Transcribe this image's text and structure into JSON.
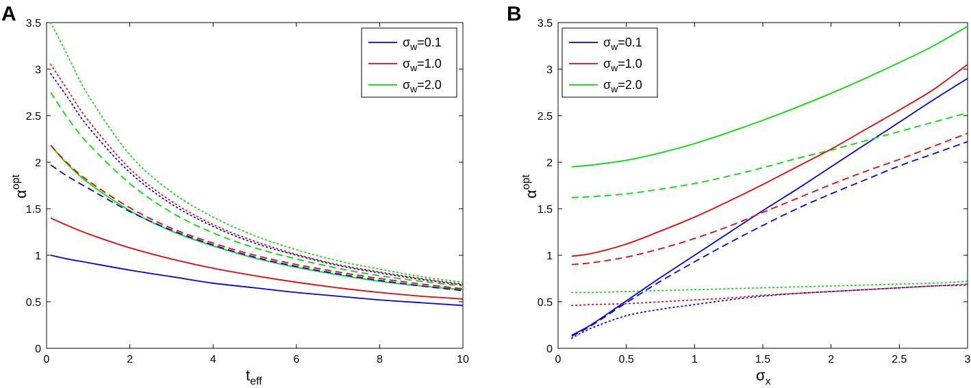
{
  "chart_data": [
    {
      "type": "line",
      "panel": "A",
      "xlabel": {
        "main": "t",
        "sub": "eff"
      },
      "ylabel": {
        "main": "α",
        "sup": "opt"
      },
      "xlim": [
        0,
        10
      ],
      "ylim": [
        0,
        3.5
      ],
      "xticks": [
        "0",
        "2",
        "4",
        "6",
        "8",
        "10"
      ],
      "yticks": [
        "0",
        "0.5",
        "1",
        "1.5",
        "2",
        "2.5",
        "3",
        "3.5"
      ],
      "legend": [
        {
          "main": "σ",
          "sub": "w",
          "rest": "=0.1",
          "color": "#0000ee"
        },
        {
          "main": "σ",
          "sub": "w",
          "rest": "=1.0",
          "color": "#ee0000"
        },
        {
          "main": "σ",
          "sub": "w",
          "rest": "=2.0",
          "color": "#00dd00"
        }
      ],
      "x": [
        0.1,
        0.5,
        1,
        2,
        3,
        4,
        5,
        6,
        7,
        8,
        9,
        10
      ],
      "series": [
        {
          "name": "σw=0.1 solid",
          "color": "#0000ee",
          "style": "solid",
          "values": [
            1.0,
            0.96,
            0.92,
            0.84,
            0.77,
            0.7,
            0.65,
            0.6,
            0.56,
            0.52,
            0.49,
            0.46
          ]
        },
        {
          "name": "σw=1.0 solid",
          "color": "#ee0000",
          "style": "solid",
          "values": [
            1.4,
            1.32,
            1.23,
            1.08,
            0.96,
            0.86,
            0.78,
            0.71,
            0.65,
            0.6,
            0.56,
            0.53
          ]
        },
        {
          "name": "σw=2.0 solid",
          "color": "#00dd00",
          "style": "solid",
          "values": [
            2.18,
            1.98,
            1.78,
            1.48,
            1.26,
            1.1,
            0.97,
            0.87,
            0.79,
            0.72,
            0.67,
            0.63
          ]
        },
        {
          "name": "σw=0.1 dashed",
          "color": "#0000ee",
          "style": "dashed",
          "values": [
            1.97,
            1.85,
            1.72,
            1.47,
            1.27,
            1.11,
            0.98,
            0.88,
            0.8,
            0.73,
            0.67,
            0.62
          ]
        },
        {
          "name": "σw=1.0 dashed",
          "color": "#ee0000",
          "style": "dashed",
          "values": [
            2.18,
            1.99,
            1.8,
            1.51,
            1.29,
            1.13,
            1.0,
            0.9,
            0.82,
            0.75,
            0.69,
            0.64
          ]
        },
        {
          "name": "σw=2.0 dashed",
          "color": "#00dd00",
          "style": "dashed",
          "values": [
            2.75,
            2.48,
            2.2,
            1.77,
            1.46,
            1.24,
            1.08,
            0.96,
            0.86,
            0.78,
            0.72,
            0.67
          ]
        },
        {
          "name": "σw=0.1 dotted",
          "color": "#0000ee",
          "style": "dotted",
          "values": [
            2.95,
            2.7,
            2.38,
            1.89,
            1.55,
            1.31,
            1.13,
            1.0,
            0.89,
            0.81,
            0.74,
            0.68
          ]
        },
        {
          "name": "σw=1.0 dotted",
          "color": "#ee0000",
          "style": "dotted",
          "values": [
            3.05,
            2.78,
            2.45,
            1.93,
            1.58,
            1.33,
            1.15,
            1.01,
            0.9,
            0.82,
            0.75,
            0.69
          ]
        },
        {
          "name": "σw=2.0 dotted",
          "color": "#00dd00",
          "style": "dotted",
          "values": [
            3.5,
            3.15,
            2.72,
            2.08,
            1.68,
            1.41,
            1.21,
            1.06,
            0.94,
            0.85,
            0.77,
            0.71
          ]
        }
      ]
    },
    {
      "type": "line",
      "panel": "B",
      "xlabel": {
        "main": "σ",
        "sub": "x"
      },
      "ylabel": {
        "main": "α",
        "sup": "opt"
      },
      "xlim": [
        0,
        3
      ],
      "ylim": [
        0,
        3.5
      ],
      "xticks": [
        "0",
        "0.5",
        "1",
        "1.5",
        "2",
        "2.5",
        "3"
      ],
      "yticks": [
        "0",
        "0.5",
        "1",
        "1.5",
        "2",
        "2.5",
        "3",
        "3.5"
      ],
      "legend": [
        {
          "main": "σ",
          "sub": "w",
          "rest": "=0.1",
          "color": "#0000ee"
        },
        {
          "main": "σ",
          "sub": "w",
          "rest": "=1.0",
          "color": "#ee0000"
        },
        {
          "main": "σ",
          "sub": "w",
          "rest": "=2.0",
          "color": "#00dd00"
        }
      ],
      "x": [
        0.1,
        0.25,
        0.5,
        0.75,
        1,
        1.25,
        1.5,
        1.75,
        2,
        2.25,
        2.5,
        2.75,
        3
      ],
      "series": [
        {
          "name": "σw=0.1 solid",
          "color": "#0000ee",
          "style": "solid",
          "values": [
            0.14,
            0.26,
            0.51,
            0.76,
            1.0,
            1.24,
            1.48,
            1.71,
            1.95,
            2.19,
            2.43,
            2.67,
            2.9
          ]
        },
        {
          "name": "σw=1.0 solid",
          "color": "#ee0000",
          "style": "solid",
          "values": [
            0.99,
            1.02,
            1.12,
            1.26,
            1.41,
            1.58,
            1.76,
            1.95,
            2.14,
            2.35,
            2.56,
            2.78,
            3.05
          ]
        },
        {
          "name": "σw=2.0 solid",
          "color": "#00dd00",
          "style": "solid",
          "values": [
            1.95,
            1.97,
            2.02,
            2.1,
            2.2,
            2.32,
            2.45,
            2.59,
            2.74,
            2.9,
            3.07,
            3.25,
            3.46
          ]
        },
        {
          "name": "σw=0.1 dashed",
          "color": "#0000ee",
          "style": "dashed",
          "values": [
            0.13,
            0.25,
            0.49,
            0.72,
            0.93,
            1.13,
            1.32,
            1.5,
            1.66,
            1.81,
            1.96,
            2.09,
            2.22
          ]
        },
        {
          "name": "σw=1.0 dashed",
          "color": "#ee0000",
          "style": "dashed",
          "values": [
            0.9,
            0.92,
            0.98,
            1.07,
            1.18,
            1.31,
            1.46,
            1.61,
            1.76,
            1.9,
            2.03,
            2.17,
            2.31
          ]
        },
        {
          "name": "σw=2.0 dashed",
          "color": "#00dd00",
          "style": "dashed",
          "values": [
            1.62,
            1.63,
            1.66,
            1.71,
            1.77,
            1.85,
            1.94,
            2.04,
            2.13,
            2.23,
            2.33,
            2.43,
            2.53
          ]
        },
        {
          "name": "σw=0.1 dotted",
          "color": "#0000ee",
          "style": "dotted",
          "values": [
            0.11,
            0.22,
            0.35,
            0.42,
            0.47,
            0.52,
            0.56,
            0.59,
            0.61,
            0.63,
            0.65,
            0.67,
            0.68
          ]
        },
        {
          "name": "σw=1.0 dotted",
          "color": "#ee0000",
          "style": "dotted",
          "values": [
            0.46,
            0.47,
            0.48,
            0.5,
            0.52,
            0.54,
            0.57,
            0.59,
            0.61,
            0.63,
            0.65,
            0.67,
            0.69
          ]
        },
        {
          "name": "σw=2.0 dotted",
          "color": "#00dd00",
          "style": "dotted",
          "values": [
            0.6,
            0.6,
            0.61,
            0.62,
            0.63,
            0.64,
            0.65,
            0.66,
            0.67,
            0.68,
            0.69,
            0.7,
            0.72
          ]
        }
      ]
    }
  ]
}
